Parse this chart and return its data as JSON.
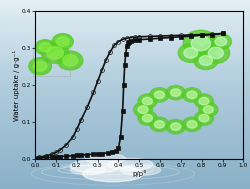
{
  "title": "",
  "xlabel": "p/p°",
  "ylabel": "Water uptake / g·g⁻¹",
  "xlim": [
    0.0,
    1.0
  ],
  "ylim": [
    0.0,
    0.4
  ],
  "xticks": [
    0.0,
    0.1,
    0.2,
    0.3,
    0.4,
    0.5,
    0.6,
    0.7,
    0.8,
    0.9,
    1.0
  ],
  "yticks": [
    0.0,
    0.1,
    0.2,
    0.3,
    0.4
  ],
  "xtick_labels": [
    "0.0",
    "0.1",
    "0.2",
    "0.3",
    "0.4",
    "0.5",
    "0.6",
    "0.7",
    "0.8",
    "0.9",
    "1.0"
  ],
  "ytick_labels": [
    "0.0",
    "0.1",
    "0.2",
    "0.3",
    "0.4"
  ],
  "sky_top": "#8ab4cc",
  "sky_mid": "#a8c8da",
  "sky_low": "#b8d4e2",
  "water_color": "#c8dce8",
  "water_foam": "#e8f2f6",
  "adsorption_x": [
    0.0,
    0.02,
    0.05,
    0.08,
    0.1,
    0.12,
    0.15,
    0.18,
    0.2,
    0.22,
    0.25,
    0.28,
    0.3,
    0.32,
    0.35,
    0.37,
    0.39,
    0.4,
    0.41,
    0.42,
    0.425,
    0.43,
    0.435,
    0.44,
    0.445,
    0.45,
    0.46,
    0.48,
    0.5,
    0.55,
    0.6,
    0.65,
    0.7,
    0.75,
    0.8,
    0.85,
    0.9
  ],
  "adsorption_y": [
    0.0,
    0.002,
    0.003,
    0.004,
    0.005,
    0.006,
    0.007,
    0.008,
    0.009,
    0.01,
    0.011,
    0.012,
    0.013,
    0.014,
    0.016,
    0.018,
    0.022,
    0.028,
    0.06,
    0.13,
    0.2,
    0.255,
    0.285,
    0.305,
    0.315,
    0.318,
    0.32,
    0.322,
    0.323,
    0.325,
    0.327,
    0.329,
    0.331,
    0.333,
    0.335,
    0.337,
    0.34
  ],
  "desorption_x": [
    0.9,
    0.85,
    0.8,
    0.75,
    0.7,
    0.65,
    0.6,
    0.55,
    0.5,
    0.48,
    0.46,
    0.44,
    0.42,
    0.4,
    0.38,
    0.36,
    0.34,
    0.32,
    0.3,
    0.28,
    0.25,
    0.22,
    0.2,
    0.18,
    0.15,
    0.12,
    0.1,
    0.08,
    0.05,
    0.02,
    0.0
  ],
  "desorption_y": [
    0.34,
    0.338,
    0.337,
    0.336,
    0.335,
    0.334,
    0.333,
    0.332,
    0.331,
    0.33,
    0.329,
    0.327,
    0.324,
    0.318,
    0.308,
    0.29,
    0.268,
    0.24,
    0.21,
    0.18,
    0.14,
    0.105,
    0.08,
    0.058,
    0.038,
    0.024,
    0.017,
    0.012,
    0.008,
    0.004,
    0.001
  ],
  "ads_color": "#111111",
  "des_color": "#111111",
  "ads_marker": "s",
  "des_marker": "o",
  "ads_markersize": 2.8,
  "des_markersize": 2.8,
  "ads_markerfacecolor": "#111111",
  "des_markerfacecolor": "none",
  "line_width": 1.2,
  "label_fontsize": 5.0,
  "tick_fontsize": 4.2,
  "spine_linewidth": 0.8
}
